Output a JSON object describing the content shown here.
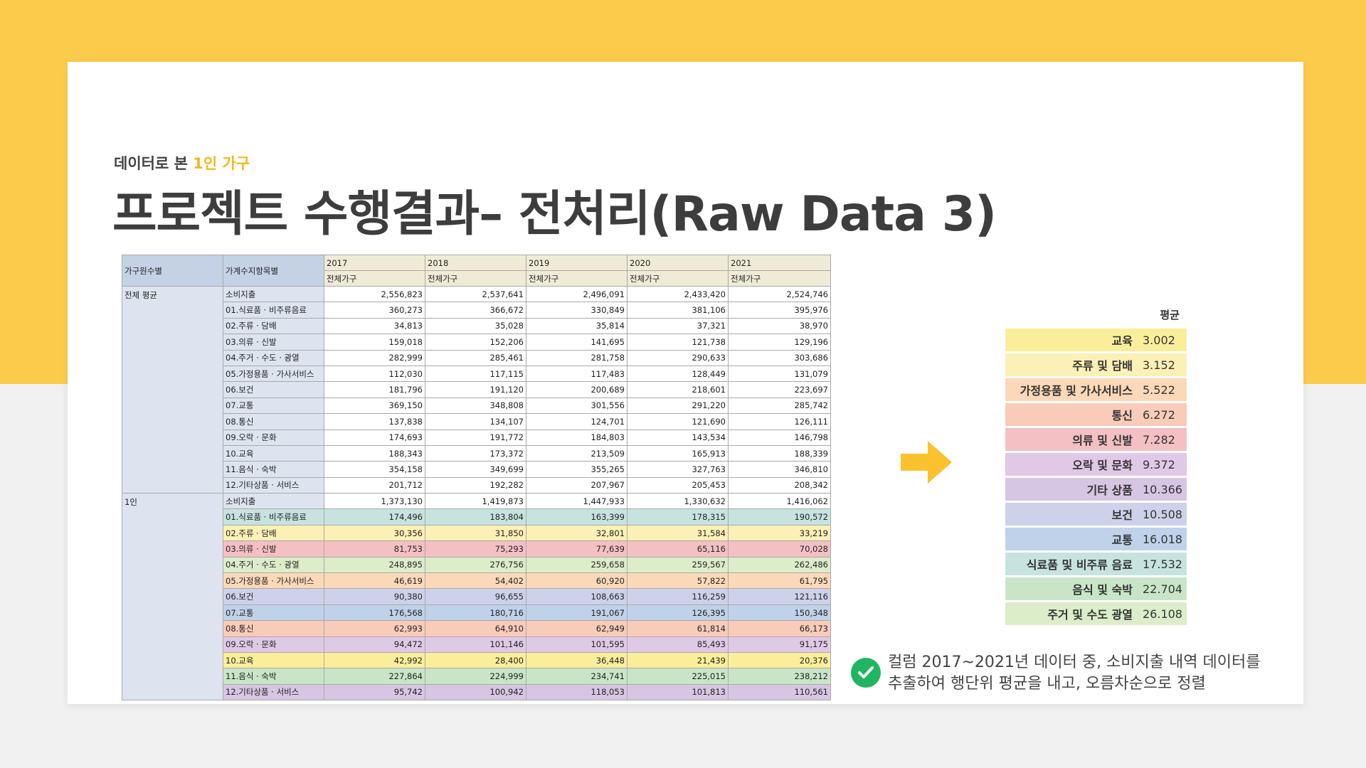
{
  "header": {
    "subtitle_prefix": "데이터로 본 ",
    "subtitle_highlight": "1인 가구",
    "title": "프로젝트 수행결과– 전처리(Raw Data 3)"
  },
  "raw_table": {
    "col_group": "가구원수별",
    "col_item": "가계수지항목별",
    "years": [
      "2017",
      "2018",
      "2019",
      "2020",
      "2021"
    ],
    "subheader": "전체가구",
    "groups": [
      {
        "name": "전체 평균",
        "rows": [
          {
            "item": "소비지출",
            "values": [
              "2,556,823",
              "2,537,641",
              "2,496,091",
              "2,433,420",
              "2,524,746"
            ]
          },
          {
            "item": "01.식료품 · 비주류음료",
            "values": [
              "360,273",
              "366,672",
              "330,849",
              "381,106",
              "395,976"
            ]
          },
          {
            "item": "02.주류 · 담배",
            "values": [
              "34,813",
              "35,028",
              "35,814",
              "37,321",
              "38,970"
            ]
          },
          {
            "item": "03.의류 · 신발",
            "values": [
              "159,018",
              "152,206",
              "141,695",
              "121,738",
              "129,196"
            ]
          },
          {
            "item": "04.주거 · 수도 · 광열",
            "values": [
              "282,999",
              "285,461",
              "281,758",
              "290,633",
              "303,686"
            ]
          },
          {
            "item": "05.가정용품 · 가사서비스",
            "values": [
              "112,030",
              "117,115",
              "117,483",
              "128,449",
              "131,079"
            ]
          },
          {
            "item": "06.보건",
            "values": [
              "181,796",
              "191,120",
              "200,689",
              "218,601",
              "223,697"
            ]
          },
          {
            "item": "07.교통",
            "values": [
              "369,150",
              "348,808",
              "301,556",
              "291,220",
              "285,742"
            ]
          },
          {
            "item": "08.통신",
            "values": [
              "137,838",
              "134,107",
              "124,701",
              "121,690",
              "126,111"
            ]
          },
          {
            "item": "09.오락 · 문화",
            "values": [
              "174,693",
              "191,772",
              "184,803",
              "143,534",
              "146,798"
            ]
          },
          {
            "item": "10.교육",
            "values": [
              "188,343",
              "173,372",
              "213,509",
              "165,913",
              "188,339"
            ]
          },
          {
            "item": "11.음식 · 숙박",
            "values": [
              "354,158",
              "349,699",
              "355,265",
              "327,763",
              "346,810"
            ]
          },
          {
            "item": "12.기타상품 · 서비스",
            "values": [
              "201,712",
              "192,282",
              "207,967",
              "205,453",
              "208,342"
            ]
          }
        ]
      },
      {
        "name": "1인",
        "rows": [
          {
            "item": "소비지출",
            "values": [
              "1,373,130",
              "1,419,873",
              "1,447,933",
              "1,330,632",
              "1,416,062"
            ]
          },
          {
            "item": "01.식료품 · 비주류음료",
            "values": [
              "174,496",
              "183,804",
              "163,399",
              "178,315",
              "190,572"
            ]
          },
          {
            "item": "02.주류 · 담배",
            "values": [
              "30,356",
              "31,850",
              "32,801",
              "31,584",
              "33,219"
            ]
          },
          {
            "item": "03.의류 · 신발",
            "values": [
              "81,753",
              "75,293",
              "77,639",
              "65,116",
              "70,028"
            ]
          },
          {
            "item": "04.주거 · 수도 · 광열",
            "values": [
              "248,895",
              "276,756",
              "259,658",
              "259,567",
              "262,486"
            ]
          },
          {
            "item": "05.가정용품 · 가사서비스",
            "values": [
              "46,619",
              "54,402",
              "60,920",
              "57,822",
              "61,795"
            ]
          },
          {
            "item": "06.보건",
            "values": [
              "90,380",
              "96,655",
              "108,663",
              "116,259",
              "121,116"
            ]
          },
          {
            "item": "07.교통",
            "values": [
              "176,568",
              "180,716",
              "191,067",
              "126,395",
              "150,348"
            ]
          },
          {
            "item": "08.통신",
            "values": [
              "62,993",
              "64,910",
              "62,949",
              "61,814",
              "66,173"
            ]
          },
          {
            "item": "09.오락 · 문화",
            "values": [
              "94,472",
              "101,146",
              "101,595",
              "85,493",
              "91,175"
            ]
          },
          {
            "item": "10.교육",
            "values": [
              "42,992",
              "28,400",
              "36,448",
              "21,439",
              "20,376"
            ]
          },
          {
            "item": "11.음식 · 숙박",
            "values": [
              "227,864",
              "224,999",
              "234,741",
              "225,015",
              "238,212"
            ]
          },
          {
            "item": "12.기타상품 · 서비스",
            "values": [
              "95,742",
              "100,942",
              "118,053",
              "101,813",
              "110,561"
            ]
          }
        ]
      }
    ]
  },
  "average_table": {
    "header": "평균",
    "rows": [
      {
        "label": "교육",
        "value": "3.002",
        "color": "#fbee9b"
      },
      {
        "label": "주류 및 담배",
        "value": "3.152",
        "color": "#fbf0b6"
      },
      {
        "label": "가정용품 및 가사서비스",
        "value": "5.522",
        "color": "#fbd9b8"
      },
      {
        "label": "통신",
        "value": "6.272",
        "color": "#f9cbb9"
      },
      {
        "label": "의류 및 신발",
        "value": "7.282",
        "color": "#f4c0c3"
      },
      {
        "label": "오락 및 문화",
        "value": "9.372",
        "color": "#e0c9e6"
      },
      {
        "label": "기타 상품",
        "value": "10.366",
        "color": "#d6c6e3"
      },
      {
        "label": "보건",
        "value": "10.508",
        "color": "#cdd2ea"
      },
      {
        "label": "교통",
        "value": "16.018",
        "color": "#bfd2ea"
      },
      {
        "label": "식료품 및 비주류 음료",
        "value": "17.532",
        "color": "#c7e3df"
      },
      {
        "label": "음식 및 숙박",
        "value": "22.704",
        "color": "#c8e6c7"
      },
      {
        "label": "주거 및 수도 광열",
        "value": "26.108",
        "color": "#dbedc9"
      }
    ]
  },
  "note": {
    "line1": "컬럼 2017~2021년 데이터 중, 소비지출 내역 데이터를",
    "line2": "추출하여 행단위 평균을 내고, 오름차순으로 정렬"
  },
  "colors": {
    "background_top": "#fdcb4c",
    "accent": "#f3b81f",
    "check": "#21b561",
    "arrow": "#fbc12e"
  },
  "icons": {
    "arrow": "arrow-right-icon",
    "check": "check-circle-icon"
  }
}
